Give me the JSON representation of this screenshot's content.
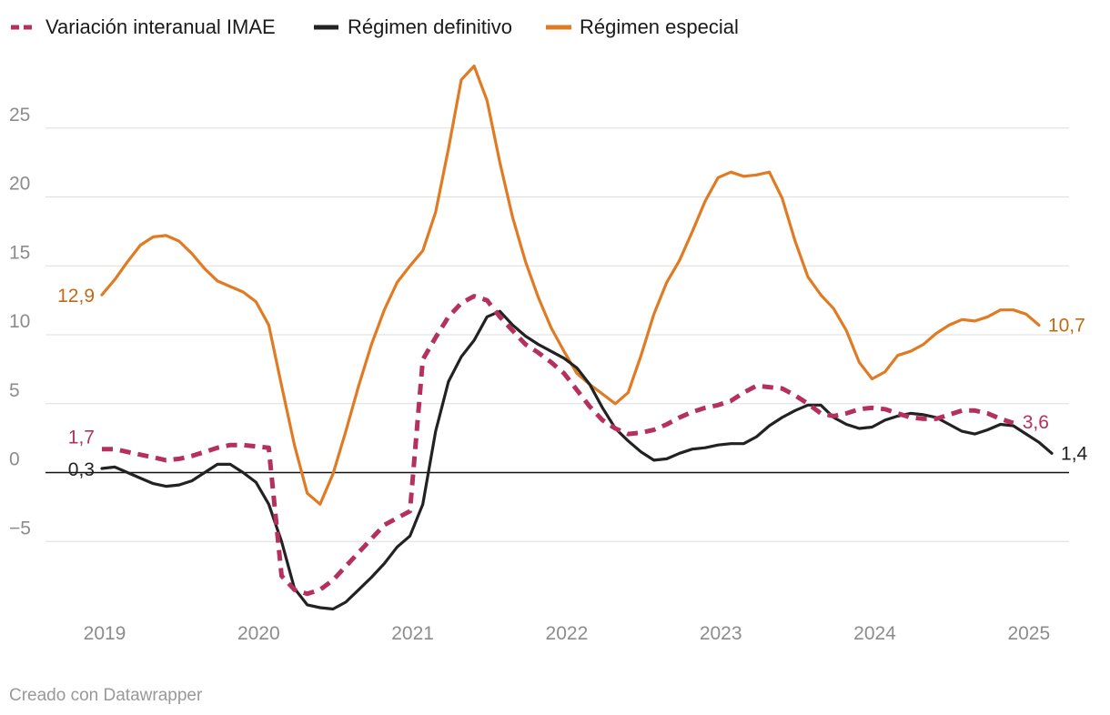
{
  "chart_data": {
    "type": "line",
    "title": "",
    "xlabel": "",
    "ylabel": "",
    "ylim": [
      -10.5,
      30
    ],
    "y_ticks": [
      -5,
      0,
      5,
      10,
      15,
      20,
      25
    ],
    "y_tick_labels": [
      "−5",
      "0",
      "5",
      "10",
      "15",
      "20",
      "25"
    ],
    "x_ticks": [
      "2019",
      "2020",
      "2021",
      "2022",
      "2023",
      "2024",
      "2025"
    ],
    "x_start": "2019-01",
    "grid": true,
    "legend_position": "top",
    "footer": "Creado con Datawrapper",
    "series": [
      {
        "name": "Variación interanual IMAE",
        "color": "#b5305e",
        "dashed": true,
        "values": [
          1.7,
          1.7,
          1.5,
          1.3,
          1.1,
          0.9,
          1.0,
          1.2,
          1.5,
          1.8,
          2.0,
          2.0,
          1.9,
          1.8,
          -7.5,
          -8.5,
          -8.8,
          -8.5,
          -7.8,
          -6.8,
          -5.8,
          -4.8,
          -3.8,
          -3.3,
          -2.8,
          8.2,
          9.8,
          11.3,
          12.3,
          12.8,
          12.5,
          11.3,
          10.3,
          9.3,
          8.7,
          8.0,
          7.2,
          6.0,
          4.8,
          3.8,
          3.2,
          2.8,
          2.9,
          3.1,
          3.5,
          4.0,
          4.4,
          4.7,
          4.9,
          5.2,
          5.8,
          6.3,
          6.2,
          6.1,
          5.6,
          5.0,
          4.3,
          4.1,
          4.3,
          4.6,
          4.7,
          4.6,
          4.3,
          4.0,
          3.9,
          3.9,
          4.2,
          4.5,
          4.5,
          4.3,
          3.9,
          3.6
        ],
        "end_label": "3,6",
        "start_label": "1,7"
      },
      {
        "name": "Régimen definitivo",
        "color": "#222222",
        "dashed": false,
        "values": [
          0.3,
          0.4,
          0.0,
          -0.4,
          -0.8,
          -1.0,
          -0.9,
          -0.6,
          0.0,
          0.6,
          0.6,
          0.0,
          -0.7,
          -2.3,
          -5.0,
          -8.4,
          -9.6,
          -9.8,
          -9.9,
          -9.4,
          -8.5,
          -7.6,
          -6.6,
          -5.4,
          -4.6,
          -2.3,
          3.0,
          6.6,
          8.4,
          9.6,
          11.3,
          11.7,
          10.7,
          9.9,
          9.3,
          8.8,
          8.3,
          7.6,
          6.4,
          4.7,
          3.2,
          2.3,
          1.5,
          0.9,
          1.0,
          1.4,
          1.7,
          1.8,
          2.0,
          2.1,
          2.1,
          2.6,
          3.4,
          4.0,
          4.5,
          4.9,
          4.9,
          4.0,
          3.5,
          3.2,
          3.3,
          3.8,
          4.1,
          4.3,
          4.2,
          4.0,
          3.5,
          3.0,
          2.8,
          3.1,
          3.5,
          3.4,
          2.8,
          2.2,
          1.4
        ],
        "end_label": "1,4",
        "start_label": "0,3"
      },
      {
        "name": "Régimen especial",
        "color": "#e07b24",
        "dashed": false,
        "values": [
          12.9,
          14.0,
          15.3,
          16.5,
          17.1,
          17.2,
          16.8,
          15.9,
          14.8,
          13.9,
          13.5,
          13.1,
          12.4,
          10.7,
          6.3,
          2.0,
          -1.5,
          -2.3,
          -0.1,
          3.0,
          6.3,
          9.3,
          11.8,
          13.8,
          15.0,
          16.1,
          18.9,
          23.5,
          28.5,
          29.5,
          27.0,
          22.5,
          18.5,
          15.3,
          12.7,
          10.5,
          8.8,
          7.2,
          6.4,
          5.7,
          5.0,
          5.8,
          8.5,
          11.5,
          13.8,
          15.4,
          17.5,
          19.7,
          21.4,
          21.8,
          21.5,
          21.6,
          21.8,
          19.9,
          16.8,
          14.2,
          12.9,
          11.9,
          10.3,
          8.0,
          6.8,
          7.3,
          8.5,
          8.8,
          9.3,
          10.1,
          10.7,
          11.1,
          11.0,
          11.3,
          11.8,
          11.8,
          11.5,
          10.7
        ],
        "end_label": "10,7",
        "start_label": "12,9"
      }
    ]
  }
}
